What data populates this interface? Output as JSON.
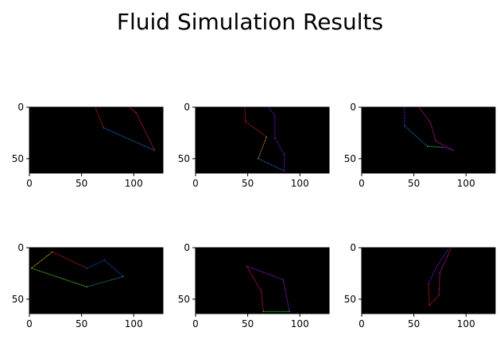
{
  "figure": {
    "title": "Fluid Simulation Results"
  },
  "chart_data": [
    {
      "type": "line",
      "panel": 1,
      "xlim": [
        0,
        128
      ],
      "ylim": [
        64,
        0
      ],
      "xticks": [
        0,
        50,
        100
      ],
      "yticks": [
        0,
        50
      ],
      "background": "#000000",
      "grid": false,
      "series": [
        {
          "color": "#ff1a1a",
          "points": [
            [
              63,
              0
            ],
            [
              71,
              20
            ]
          ]
        },
        {
          "color": "#1a8cff",
          "points": [
            [
              71,
              20
            ],
            [
              120,
              42
            ]
          ]
        },
        {
          "color": "#ff1a8c",
          "points": [
            [
              95,
              0
            ],
            [
              102,
              5
            ],
            [
              120,
              42
            ]
          ]
        }
      ]
    },
    {
      "type": "line",
      "panel": 2,
      "xlim": [
        0,
        128
      ],
      "ylim": [
        64,
        0
      ],
      "xticks": [
        0,
        50,
        100
      ],
      "yticks": [
        0,
        50
      ],
      "background": "#000000",
      "grid": false,
      "series": [
        {
          "color": "#ff1a3c",
          "points": [
            [
              47,
              0
            ],
            [
              48,
              14
            ],
            [
              68,
              29
            ]
          ]
        },
        {
          "color": "#ffaa1a",
          "points": [
            [
              68,
              29
            ],
            [
              60,
              50
            ]
          ]
        },
        {
          "color": "#1a8cff",
          "points": [
            [
              60,
              50
            ],
            [
              85,
              62
            ]
          ]
        },
        {
          "color": "#8c1aff",
          "points": [
            [
              70,
              0
            ],
            [
              76,
              8
            ],
            [
              76,
              30
            ],
            [
              85,
              46
            ],
            [
              85,
              62
            ]
          ]
        }
      ]
    },
    {
      "type": "line",
      "panel": 3,
      "xlim": [
        0,
        128
      ],
      "ylim": [
        64,
        0
      ],
      "xticks": [
        0,
        50,
        100
      ],
      "yticks": [
        0,
        50
      ],
      "background": "#000000",
      "grid": false,
      "series": [
        {
          "color": "#8c1aff",
          "points": [
            [
              41,
              0
            ],
            [
              41,
              18
            ]
          ]
        },
        {
          "color": "#1a8cff",
          "points": [
            [
              41,
              18
            ],
            [
              63,
              38
            ]
          ]
        },
        {
          "color": "#1aff5a",
          "points": [
            [
              63,
              38
            ],
            [
              78,
              39
            ]
          ]
        },
        {
          "color": "#ff1aaa",
          "points": [
            [
              55,
              0
            ],
            [
              66,
              15
            ],
            [
              71,
              33
            ],
            [
              88,
              42
            ]
          ]
        },
        {
          "color": "#5a1aff",
          "points": [
            [
              78,
              39
            ],
            [
              88,
              42
            ]
          ]
        }
      ]
    },
    {
      "type": "line",
      "panel": 4,
      "xlim": [
        0,
        128
      ],
      "ylim": [
        64,
        0
      ],
      "xticks": [
        0,
        50,
        100
      ],
      "yticks": [
        0,
        50
      ],
      "background": "#000000",
      "grid": false,
      "series": [
        {
          "color": "#ffe01a",
          "points": [
            [
              2,
              20
            ],
            [
              22,
              4
            ]
          ]
        },
        {
          "color": "#ff1a3c",
          "points": [
            [
              22,
              4
            ],
            [
              55,
              20
            ]
          ]
        },
        {
          "color": "#1a5aff",
          "points": [
            [
              55,
              20
            ],
            [
              72,
              12
            ],
            [
              90,
              28
            ]
          ]
        },
        {
          "color": "#5aff1a",
          "points": [
            [
              2,
              20
            ],
            [
              55,
              38
            ]
          ]
        },
        {
          "color": "#1aaa8c",
          "points": [
            [
              55,
              38
            ],
            [
              90,
              28
            ]
          ]
        }
      ]
    },
    {
      "type": "line",
      "panel": 5,
      "xlim": [
        0,
        128
      ],
      "ylim": [
        64,
        0
      ],
      "xticks": [
        0,
        50,
        100
      ],
      "yticks": [
        0,
        50
      ],
      "background": "#000000",
      "grid": false,
      "series": [
        {
          "color": "#ff1a5a",
          "points": [
            [
              49,
              18
            ],
            [
              63,
              42
            ],
            [
              65,
              62
            ]
          ]
        },
        {
          "color": "#aa1aff",
          "points": [
            [
              49,
              18
            ],
            [
              84,
              31
            ],
            [
              90,
              62
            ]
          ]
        },
        {
          "color": "#1aff1a",
          "points": [
            [
              65,
              62
            ],
            [
              90,
              62
            ]
          ]
        }
      ]
    },
    {
      "type": "line",
      "panel": 6,
      "xlim": [
        0,
        128
      ],
      "ylim": [
        64,
        0
      ],
      "xticks": [
        0,
        50,
        100
      ],
      "yticks": [
        0,
        50
      ],
      "background": "#000000",
      "grid": false,
      "series": [
        {
          "color": "#8c1aff",
          "points": [
            [
              84,
              0
            ],
            [
              72,
              18
            ],
            [
              64,
              35
            ]
          ]
        },
        {
          "color": "#ff1aaa",
          "points": [
            [
              86,
              0
            ],
            [
              75,
              24
            ],
            [
              74,
              46
            ]
          ]
        },
        {
          "color": "#ff1a1a",
          "points": [
            [
              64,
              35
            ],
            [
              65,
              56
            ],
            [
              74,
              46
            ]
          ]
        }
      ]
    }
  ]
}
